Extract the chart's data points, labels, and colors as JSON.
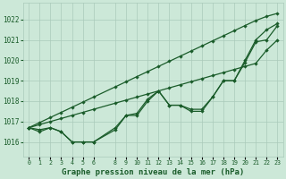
{
  "xlabel": "Graphe pression niveau de la mer (hPa)",
  "ylim": [
    1015.3,
    1022.8
  ],
  "xlim": [
    -0.5,
    23.5
  ],
  "yticks": [
    1016,
    1017,
    1018,
    1019,
    1020,
    1021,
    1022
  ],
  "xticks": [
    0,
    1,
    2,
    3,
    4,
    5,
    6,
    8,
    9,
    10,
    11,
    12,
    13,
    14,
    15,
    16,
    17,
    18,
    19,
    20,
    21,
    22,
    23
  ],
  "bg_color": "#cce8d8",
  "grid_color": "#aacaba",
  "line_color": "#1a5c2a",
  "x_vals": [
    0,
    1,
    2,
    3,
    4,
    5,
    6,
    8,
    9,
    10,
    11,
    12,
    13,
    14,
    15,
    16,
    17,
    18,
    19,
    20,
    21,
    22,
    23
  ],
  "line_straight1": [
    1016.7,
    1016.85,
    1017.0,
    1017.15,
    1017.3,
    1017.45,
    1017.6,
    1017.9,
    1018.05,
    1018.2,
    1018.35,
    1018.5,
    1018.65,
    1018.8,
    1018.95,
    1019.1,
    1019.25,
    1019.4,
    1019.55,
    1019.7,
    1019.85,
    1020.5,
    1021.0
  ],
  "line_straight2": [
    1016.7,
    1016.95,
    1017.2,
    1017.45,
    1017.7,
    1017.95,
    1018.2,
    1018.7,
    1018.95,
    1019.2,
    1019.45,
    1019.7,
    1019.95,
    1020.2,
    1020.45,
    1020.7,
    1020.95,
    1021.2,
    1021.45,
    1021.7,
    1021.95,
    1022.15,
    1022.3
  ],
  "line_wavy1": [
    1016.7,
    1016.6,
    1016.7,
    1016.5,
    1016.0,
    1016.0,
    1016.0,
    1016.7,
    1017.3,
    1017.4,
    1018.1,
    1018.5,
    1017.8,
    1017.8,
    1017.6,
    1017.6,
    1018.2,
    1019.0,
    1019.0,
    1020.0,
    1021.0,
    1021.5,
    1021.8
  ],
  "line_wavy2": [
    1016.7,
    1016.5,
    1016.7,
    1016.5,
    1016.0,
    1016.0,
    1016.0,
    1016.6,
    1017.3,
    1017.3,
    1018.0,
    1018.5,
    1017.8,
    1017.8,
    1017.5,
    1017.5,
    1018.2,
    1019.0,
    1019.0,
    1019.9,
    1020.9,
    1021.0,
    1021.7
  ]
}
